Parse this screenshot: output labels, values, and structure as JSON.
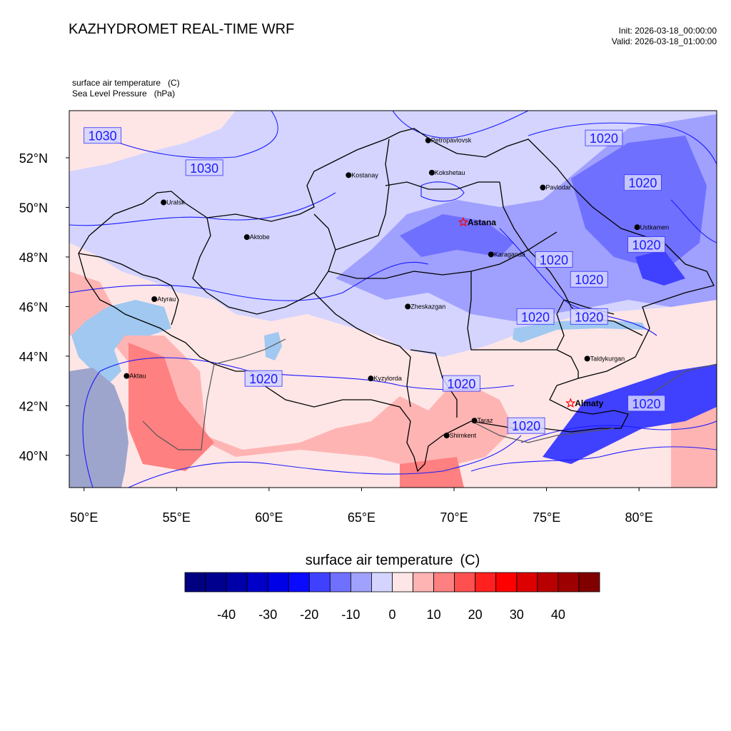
{
  "header": {
    "title": "KAZHYDROMET REAL-TIME WRF",
    "init": "Init: 2026-03-18_00:00:00",
    "valid": "Valid: 2026-03-18_01:00:00"
  },
  "variables": [
    {
      "name": "surface air temperature",
      "unit": "(C)"
    },
    {
      "name": "Sea Level Pressure",
      "unit": "(hPa)"
    }
  ],
  "map": {
    "lon_range": [
      49.2,
      84.2
    ],
    "lat_range": [
      38.7,
      53.9
    ],
    "lon_ticks": [
      "50°E",
      "55°E",
      "60°E",
      "65°E",
      "70°E",
      "75°E",
      "80°E"
    ],
    "lat_ticks": [
      "52°N",
      "50°N",
      "48°N",
      "46°N",
      "44°N",
      "42°N",
      "40°N"
    ],
    "lon_tick_values": [
      50,
      55,
      60,
      65,
      70,
      75,
      80
    ],
    "lat_tick_values": [
      52,
      50,
      48,
      46,
      44,
      42,
      40
    ],
    "cities": [
      {
        "name": "Petropavlovsk",
        "lon": 68.6,
        "lat": 52.7,
        "capital": false
      },
      {
        "name": "Kostanay",
        "lon": 64.3,
        "lat": 51.3,
        "capital": false
      },
      {
        "name": "Kokshetau",
        "lon": 68.8,
        "lat": 51.4,
        "capital": false
      },
      {
        "name": "Pavlodar",
        "lon": 74.8,
        "lat": 50.8,
        "capital": false
      },
      {
        "name": "Uralsk",
        "lon": 54.3,
        "lat": 50.2,
        "capital": false
      },
      {
        "name": "Astana",
        "lon": 70.5,
        "lat": 49.4,
        "capital": true
      },
      {
        "name": "Ustkamen",
        "lon": 79.9,
        "lat": 49.2,
        "capital": false
      },
      {
        "name": "Aktobe",
        "lon": 58.8,
        "lat": 48.8,
        "capital": false
      },
      {
        "name": "Karaganda",
        "lon": 72.0,
        "lat": 48.1,
        "capital": false
      },
      {
        "name": "Atyrau",
        "lon": 53.8,
        "lat": 46.3,
        "capital": false
      },
      {
        "name": "Zheskazgan",
        "lon": 67.5,
        "lat": 46.0,
        "capital": false
      },
      {
        "name": "Taldykurgan",
        "lon": 77.2,
        "lat": 43.9,
        "capital": false
      },
      {
        "name": "Kyzylorda",
        "lon": 65.5,
        "lat": 43.1,
        "capital": false
      },
      {
        "name": "Aktau",
        "lon": 52.3,
        "lat": 43.2,
        "capital": false
      },
      {
        "name": "Almaty",
        "lon": 76.3,
        "lat": 42.1,
        "capital": true
      },
      {
        "name": "Taraz",
        "lon": 71.1,
        "lat": 41.4,
        "capital": false
      },
      {
        "name": "Shimkent",
        "lon": 69.6,
        "lat": 40.8,
        "capital": false
      }
    ],
    "pressure_labels": [
      {
        "text": "1030",
        "lon": 51.0,
        "lat": 52.9
      },
      {
        "text": "1030",
        "lon": 56.5,
        "lat": 51.6
      },
      {
        "text": "1020",
        "lon": 78.1,
        "lat": 52.8
      },
      {
        "text": "1020",
        "lon": 80.2,
        "lat": 51.0
      },
      {
        "text": "1020",
        "lon": 80.4,
        "lat": 48.5
      },
      {
        "text": "1020",
        "lon": 75.4,
        "lat": 47.9
      },
      {
        "text": "1020",
        "lon": 77.3,
        "lat": 47.1
      },
      {
        "text": "1020",
        "lon": 74.4,
        "lat": 45.6
      },
      {
        "text": "1020",
        "lon": 77.3,
        "lat": 45.6
      },
      {
        "text": "1020",
        "lon": 59.7,
        "lat": 43.1
      },
      {
        "text": "1020",
        "lon": 70.4,
        "lat": 42.9
      },
      {
        "text": "1020",
        "lon": 80.4,
        "lat": 42.1
      },
      {
        "text": "1020",
        "lon": 73.9,
        "lat": 41.2
      }
    ]
  },
  "colorbar": {
    "title": "surface air temperature",
    "unit": "(C)",
    "colors": [
      "#000080",
      "#00008f",
      "#0000a8",
      "#0000c8",
      "#0000e6",
      "#0a0aff",
      "#4040ff",
      "#7070ff",
      "#a0a0ff",
      "#d4d4ff",
      "#ffe6e6",
      "#ffb4b4",
      "#ff8080",
      "#ff5050",
      "#ff2020",
      "#ff0000",
      "#dc0000",
      "#b80000",
      "#9c0000",
      "#800000"
    ],
    "tick_labels": [
      "-40",
      "-30",
      "-20",
      "-10",
      "0",
      "10",
      "20",
      "30",
      "40"
    ],
    "tick_values": [
      -40,
      -30,
      -20,
      -10,
      0,
      10,
      20,
      30,
      40
    ],
    "range": [
      -50,
      50
    ]
  }
}
